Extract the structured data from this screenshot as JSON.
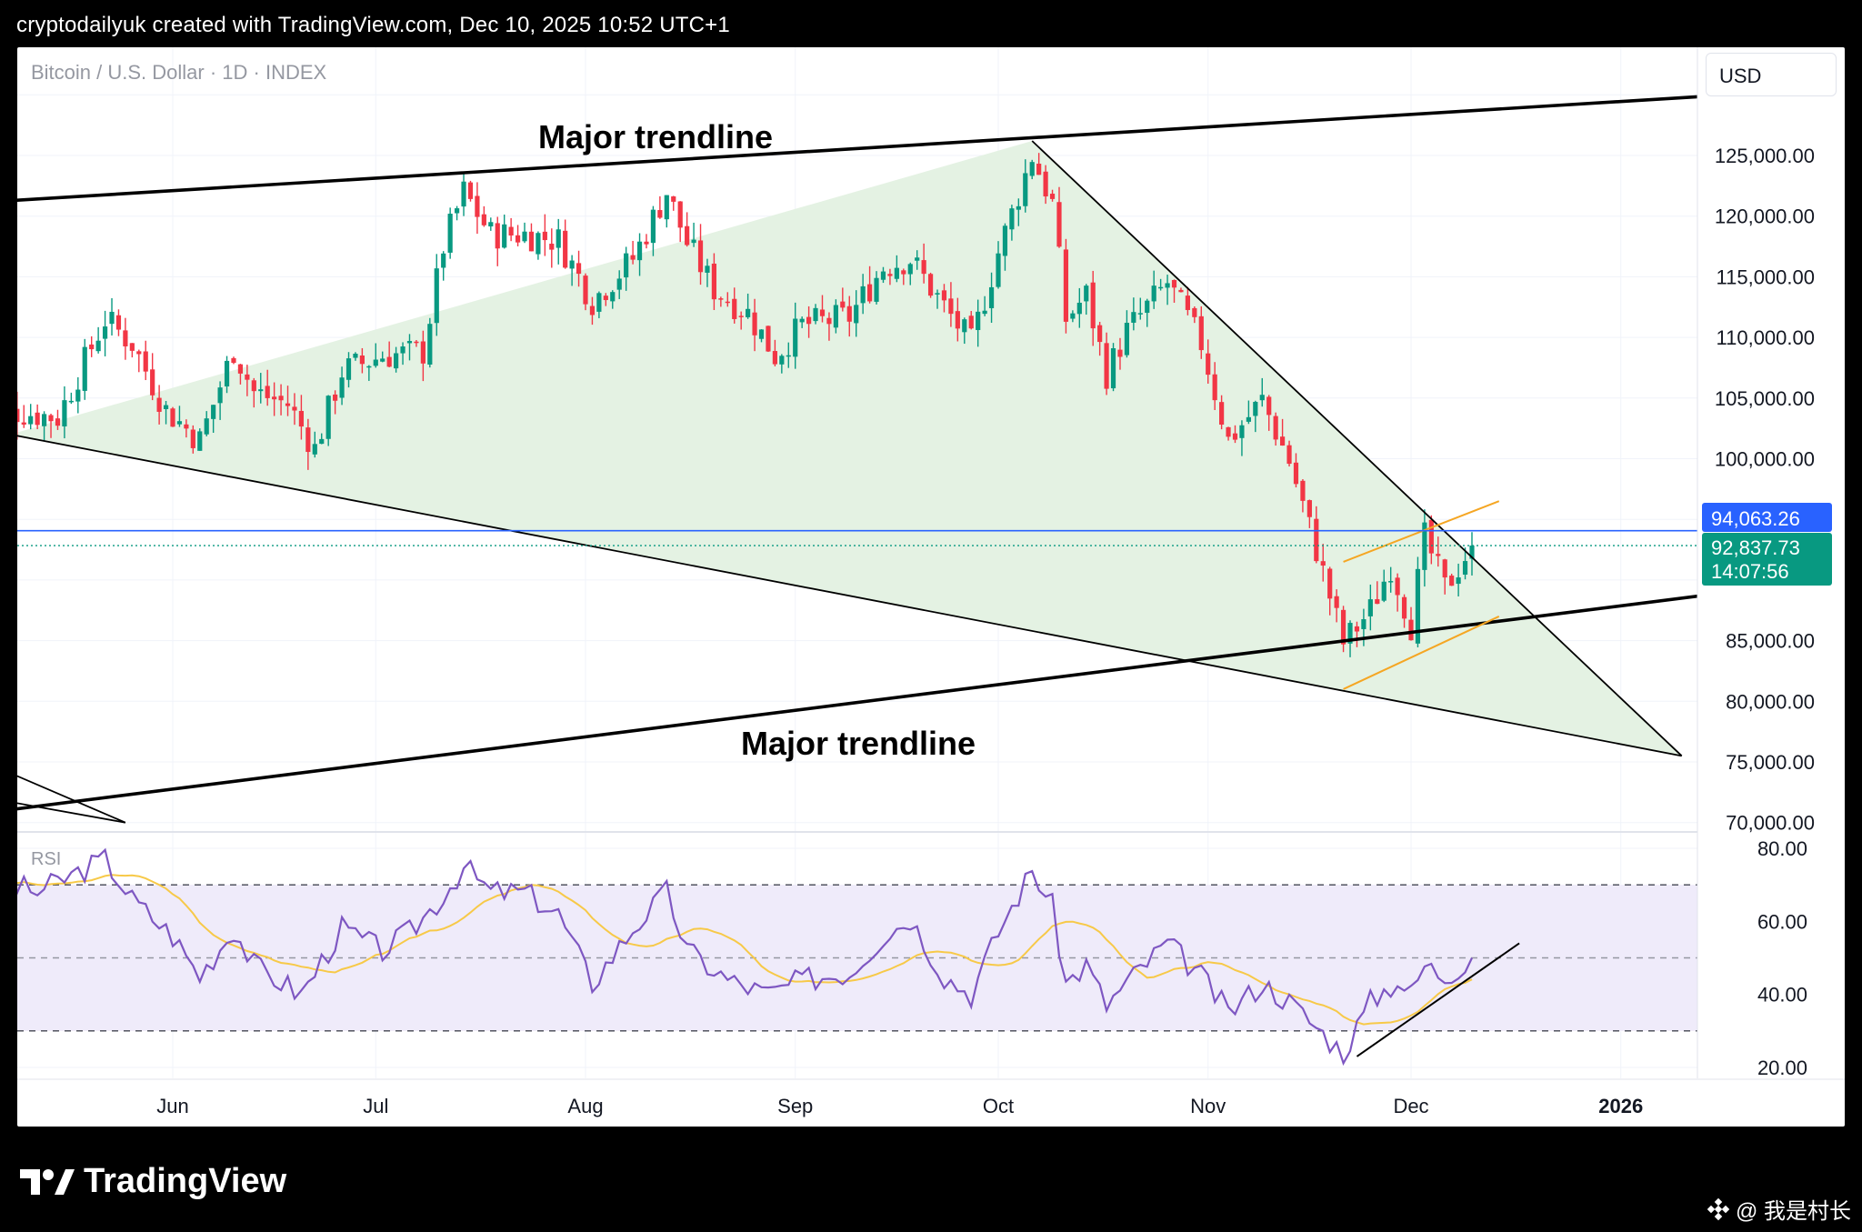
{
  "header": {
    "text": "cryptodailyuk created with TradingView.com, Dec 10, 2025 10:52 UTC+1"
  },
  "symbol": {
    "text": "Bitcoin / U.S. Dollar · 1D · INDEX"
  },
  "currency": {
    "label": "USD"
  },
  "annotations": {
    "top_trendline": "Major trendline",
    "bottom_trendline": "Major trendline"
  },
  "price_axis": {
    "ticks": [
      "125,000.00",
      "120,000.00",
      "115,000.00",
      "110,000.00",
      "105,000.00",
      "100,000.00",
      "85,000.00",
      "80,000.00",
      "75,000.00",
      "70,000.00"
    ],
    "badges": {
      "line_price": "94,063.26",
      "last_price": "92,837.73",
      "countdown": "14:07:56"
    }
  },
  "rsi": {
    "label": "RSI",
    "ticks": [
      "80.00",
      "60.00",
      "40.00",
      "20.00"
    ]
  },
  "time_axis": {
    "labels": [
      "Jun",
      "Jul",
      "Aug",
      "Sep",
      "Oct",
      "Nov",
      "Dec",
      "2026"
    ]
  },
  "footer": {
    "brand": "TradingView",
    "watermark": "@ 我是村长"
  },
  "colors": {
    "up": "#089981",
    "down": "#f23645",
    "rsi_line": "#7e57c2",
    "rsi_ma": "#f7c948",
    "wedge_fill": "#e3f1e1",
    "rsi_band": "#efebfa",
    "price_line": "#2962ff",
    "channel": "#f5a623"
  },
  "chart_data": {
    "type": "candlestick",
    "price_range": [
      70000,
      130000
    ],
    "rsi_range": [
      20,
      80
    ],
    "rsi_levels": [
      70,
      50,
      30
    ],
    "x_start": "2025-05-04",
    "x_labels_dates": [
      "2025-06-01",
      "2025-07-01",
      "2025-08-01",
      "2025-09-01",
      "2025-10-01",
      "2025-11-01",
      "2025-12-01",
      "2026-01-01"
    ],
    "close_path": [
      [
        "2025-05-04",
        104200
      ],
      [
        "2025-05-10",
        103800
      ],
      [
        "2025-05-15",
        103400
      ],
      [
        "2025-05-22",
        111500
      ],
      [
        "2025-05-26",
        109500
      ],
      [
        "2025-05-31",
        104000
      ],
      [
        "2025-06-05",
        101500
      ],
      [
        "2025-06-10",
        109000
      ],
      [
        "2025-06-13",
        105500
      ],
      [
        "2025-06-18",
        104500
      ],
      [
        "2025-06-22",
        100800
      ],
      [
        "2025-06-26",
        107200
      ],
      [
        "2025-07-02",
        108500
      ],
      [
        "2025-07-08",
        108800
      ],
      [
        "2025-07-11",
        117500
      ],
      [
        "2025-07-14",
        122000
      ],
      [
        "2025-07-18",
        118500
      ],
      [
        "2025-07-23",
        118500
      ],
      [
        "2025-07-28",
        118000
      ],
      [
        "2025-08-02",
        113000
      ],
      [
        "2025-08-08",
        116500
      ],
      [
        "2025-08-13",
        122000
      ],
      [
        "2025-08-16",
        117800
      ],
      [
        "2025-08-20",
        114000
      ],
      [
        "2025-08-25",
        112000
      ],
      [
        "2025-08-29",
        108500
      ],
      [
        "2025-09-02",
        111000
      ],
      [
        "2025-09-09",
        111700
      ],
      [
        "2025-09-14",
        115800
      ],
      [
        "2025-09-18",
        116500
      ],
      [
        "2025-09-23",
        112500
      ],
      [
        "2025-09-27",
        109500
      ],
      [
        "2025-10-01",
        117000
      ],
      [
        "2025-10-06",
        125000
      ],
      [
        "2025-10-09",
        121000
      ],
      [
        "2025-10-11",
        111500
      ],
      [
        "2025-10-14",
        113500
      ],
      [
        "2025-10-17",
        107000
      ],
      [
        "2025-10-20",
        110500
      ],
      [
        "2025-10-26",
        114500
      ],
      [
        "2025-10-31",
        109500
      ],
      [
        "2025-11-04",
        101500
      ],
      [
        "2025-11-09",
        104800
      ],
      [
        "2025-11-13",
        99800
      ],
      [
        "2025-11-17",
        92500
      ],
      [
        "2025-11-21",
        84800
      ],
      [
        "2025-11-25",
        87500
      ],
      [
        "2025-11-28",
        91200
      ],
      [
        "2025-12-01",
        86300
      ],
      [
        "2025-12-03",
        93500
      ],
      [
        "2025-12-06",
        89300
      ],
      [
        "2025-12-10",
        92837.73
      ]
    ],
    "lines": {
      "price_line": 94063.26,
      "major_trendline_top": [
        [
          "2025-04-30",
          121000
        ],
        [
          "2026-01-17",
          130000
        ]
      ],
      "major_trendline_bottom": [
        [
          "2025-04-30",
          70500
        ],
        [
          "2026-01-17",
          89000
        ]
      ],
      "wedge_upper": [
        [
          "2025-10-06",
          126200
        ],
        [
          "2026-01-10",
          75500
        ]
      ],
      "wedge_lower": [
        [
          "2025-05-08",
          102000
        ],
        [
          "2026-01-10",
          75500
        ]
      ],
      "wedge_left": [
        [
          "2025-05-08",
          102000
        ],
        [
          "2025-10-06",
          126200
        ]
      ],
      "channel_upper": [
        [
          "2025-11-21",
          91500
        ],
        [
          "2025-12-14",
          96500
        ]
      ],
      "channel_lower": [
        [
          "2025-11-21",
          81000
        ],
        [
          "2025-12-14",
          87000
        ]
      ],
      "older_lines": [
        [
          [
            "2025-04-30",
            76000
          ],
          [
            "2025-05-25",
            70000
          ]
        ],
        [
          [
            "2025-04-30",
            72500
          ],
          [
            "2025-05-25",
            70000
          ]
        ]
      ],
      "rsi_trendline": [
        [
          "2025-11-23",
          23
        ],
        [
          "2025-12-17",
          54
        ]
      ]
    },
    "rsi_path": [
      [
        "2025-05-04",
        72
      ],
      [
        "2025-05-12",
        68
      ],
      [
        "2025-05-22",
        77
      ],
      [
        "2025-05-26",
        66
      ],
      [
        "2025-06-01",
        56
      ],
      [
        "2025-06-05",
        45
      ],
      [
        "2025-06-10",
        58
      ],
      [
        "2025-06-13",
        48
      ],
      [
        "2025-06-20",
        40
      ],
      [
        "2025-06-26",
        58
      ],
      [
        "2025-07-02",
        52
      ],
      [
        "2025-07-06",
        57
      ],
      [
        "2025-07-11",
        67
      ],
      [
        "2025-07-14",
        75
      ],
      [
        "2025-07-18",
        68
      ],
      [
        "2025-07-23",
        68
      ],
      [
        "2025-07-28",
        62
      ],
      [
        "2025-08-02",
        43
      ],
      [
        "2025-08-08",
        58
      ],
      [
        "2025-08-13",
        68
      ],
      [
        "2025-08-16",
        52
      ],
      [
        "2025-08-22",
        44
      ],
      [
        "2025-08-28",
        40
      ],
      [
        "2025-09-02",
        44
      ],
      [
        "2025-09-09",
        46
      ],
      [
        "2025-09-14",
        56
      ],
      [
        "2025-09-18",
        61
      ],
      [
        "2025-09-23",
        45
      ],
      [
        "2025-09-27",
        40
      ],
      [
        "2025-10-01",
        57
      ],
      [
        "2025-10-06",
        74
      ],
      [
        "2025-10-09",
        64
      ],
      [
        "2025-10-11",
        43
      ],
      [
        "2025-10-14",
        48
      ],
      [
        "2025-10-17",
        37
      ],
      [
        "2025-10-22",
        47
      ],
      [
        "2025-10-26",
        54
      ],
      [
        "2025-10-31",
        45
      ],
      [
        "2025-11-04",
        35
      ],
      [
        "2025-11-09",
        43
      ],
      [
        "2025-11-13",
        38
      ],
      [
        "2025-11-17",
        31
      ],
      [
        "2025-11-21",
        24
      ],
      [
        "2025-11-25",
        38
      ],
      [
        "2025-11-29",
        44
      ],
      [
        "2025-12-01",
        40
      ],
      [
        "2025-12-03",
        48
      ],
      [
        "2025-12-06",
        45
      ],
      [
        "2025-12-10",
        50
      ]
    ]
  }
}
